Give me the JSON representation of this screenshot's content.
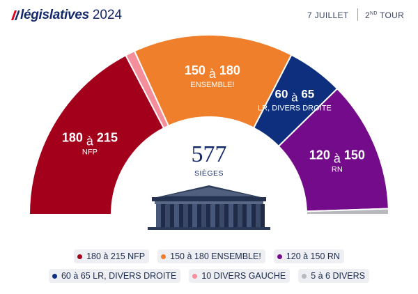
{
  "header": {
    "brand": "législatives",
    "year": "2024",
    "date": "7 JUILLET",
    "tour_number": "2",
    "tour_suffix": "ND",
    "tour_label": "TOUR"
  },
  "chart_data": {
    "type": "pie",
    "variant": "hemicycle",
    "total_seats": 577,
    "center_value": "577",
    "center_label": "SIÈGES",
    "segments": [
      {
        "key": "nfp",
        "name": "NFP",
        "min": 180,
        "max": 215,
        "label_range": "180 à 215",
        "legend": "180 à 215 NFP",
        "color": "#a3001b",
        "label_color": "#ffffff"
      },
      {
        "key": "divers_gauche",
        "name": "DIVERS GAUCHE",
        "min": 10,
        "max": 10,
        "label_range": "10",
        "legend": "10 DIVERS GAUCHE",
        "color": "#f58e9b",
        "label_color": "#ffffff"
      },
      {
        "key": "ensemble",
        "name": "ENSEMBLE!",
        "min": 150,
        "max": 180,
        "label_range": "150 à 180",
        "legend": "150 à 180 ENSEMBLE!",
        "color": "#f07f2b",
        "label_color": "#ffffff"
      },
      {
        "key": "lr",
        "name": "LR, DIVERS DROITE",
        "min": 60,
        "max": 65,
        "label_range": "60 à 65",
        "legend": "60 à 65 LR, DIVERS DROITE",
        "color": "#0e2f7d",
        "label_color": "#ffffff"
      },
      {
        "key": "rn",
        "name": "RN",
        "min": 120,
        "max": 150,
        "label_range": "120 à 150",
        "legend": "120 à 150 RN",
        "color": "#740b8a",
        "label_color": "#ffffff"
      },
      {
        "key": "divers",
        "name": "DIVERS",
        "min": 5,
        "max": 6,
        "label_range": "5 à 6",
        "legend": "5 à 6 DIVERS",
        "color": "#b7b9be",
        "label_color": "#ffffff"
      }
    ],
    "displayed_fractions": [
      0.3466,
      0.0173,
      0.2878,
      0.1013,
      0.2365,
      0.0105
    ],
    "legend_rows": [
      [
        "nfp",
        "ensemble",
        "rn"
      ],
      [
        "lr",
        "divers_gauche",
        "divers"
      ]
    ]
  },
  "colors": {
    "brand": "#13296b",
    "brand_accent": "#e3001b",
    "text": "#1b2a4a",
    "chip_bg": "#eeeff2"
  }
}
